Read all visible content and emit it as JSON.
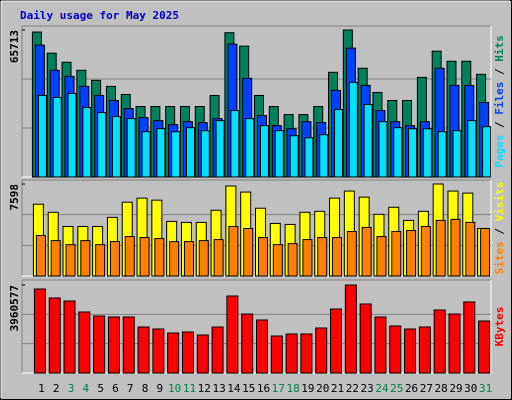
{
  "chart_data": {
    "type": "bar",
    "title": "Daily usage for May 2025",
    "categories": [
      "1",
      "2",
      "3",
      "4",
      "5",
      "6",
      "7",
      "8",
      "9",
      "10",
      "11",
      "12",
      "13",
      "14",
      "15",
      "16",
      "17",
      "18",
      "19",
      "20",
      "21",
      "22",
      "23",
      "24",
      "25",
      "26",
      "27",
      "28",
      "29",
      "30",
      "31"
    ],
    "category_colors": [
      "#000000",
      "#000000",
      "#008040",
      "#008040",
      "#000000",
      "#000000",
      "#000000",
      "#000000",
      "#000000",
      "#008040",
      "#008040",
      "#000000",
      "#000000",
      "#000000",
      "#000000",
      "#000000",
      "#008040",
      "#008040",
      "#000000",
      "#000000",
      "#000000",
      "#000000",
      "#000000",
      "#008040",
      "#008040",
      "#000000",
      "#000000",
      "#000000",
      "#000000",
      "#000000",
      "#008040"
    ],
    "panels": [
      {
        "ylim": [
          0,
          65713
        ],
        "yticks": [
          65713
        ],
        "series": [
          {
            "name": "Hits",
            "color": "#00805c",
            "values": [
              64800,
              55350,
              51300,
              47700,
              43200,
              40500,
              36900,
              31500,
              31500,
              31500,
              31500,
              31500,
              36450,
              64500,
              58500,
              36450,
              31500,
              27900,
              27900,
              31500,
              46800,
              65713,
              48600,
              37800,
              34200,
              34200,
              44550,
              56250,
              51750,
              51750,
              45900
            ]
          },
          {
            "name": "Files",
            "color": "#0040ff",
            "values": [
              58950,
              47700,
              45000,
              40500,
              36450,
              34200,
              30600,
              26550,
              25200,
              23400,
              24750,
              24300,
              26100,
              59400,
              44100,
              27450,
              22950,
              21600,
              24750,
              24300,
              38700,
              57600,
              40950,
              29700,
              24750,
              22950,
              24750,
              48600,
              40950,
              40950,
              33300
            ]
          },
          {
            "name": "Pages",
            "color": "#00e0ff",
            "values": [
              36450,
              35550,
              37350,
              31050,
              28800,
              27000,
              26100,
              20250,
              21600,
              20250,
              22050,
              20700,
              25200,
              29700,
              26100,
              22950,
              20700,
              18450,
              17550,
              18900,
              30150,
              42300,
              32400,
              24750,
              22050,
              21600,
              21600,
              20250,
              20700,
              25200,
              22500
            ]
          }
        ]
      },
      {
        "ylim": [
          0,
          7598
        ],
        "yticks": [
          7598
        ],
        "series": [
          {
            "name": "Visits",
            "color": "#ffff00",
            "values": [
              5929,
              5261,
              4092,
              4092,
              4092,
              4843,
              6096,
              6430,
              6263,
              4509,
              4426,
              4426,
              5428,
              7432,
              6931,
              5595,
              4342,
              4259,
              5261,
              5344,
              6430,
              7014,
              6513,
              5094,
              5678,
              4593,
              5344,
              7598,
              7014,
              6847,
              3925
            ]
          },
          {
            "name": "Sites",
            "color": "#ff8000",
            "values": [
              3340,
              2923,
              2589,
              2923,
              2589,
              2839,
              3257,
              3173,
              3090,
              2839,
              2839,
              2923,
              3006,
              4092,
              3925,
              3173,
              2589,
              2672,
              3006,
              3173,
              3173,
              3674,
              4008,
              3257,
              3674,
              3758,
              4092,
              4593,
              4676,
              4426,
              3925
            ]
          }
        ]
      },
      {
        "ylim": [
          0,
          3960577
        ],
        "yticks": [
          3960577
        ],
        "series": [
          {
            "name": "KBytes",
            "color": "#ff0000",
            "values": [
              3780588,
              3375525,
              3240504,
              2745427,
              2565399,
              2520392,
              2520392,
              2070322,
              1980308,
              1800280,
              1845287,
              1710266,
              2070322,
              3465539,
              2655413,
              2385371,
              1665259,
              1755273,
              1755273,
              2025315,
              2880448,
              3960577,
              3105483,
              2520392,
              2115329,
              1980308,
              2070322,
              2835441,
              2655413,
              3195497,
              2340364
            ]
          }
        ]
      }
    ]
  }
}
